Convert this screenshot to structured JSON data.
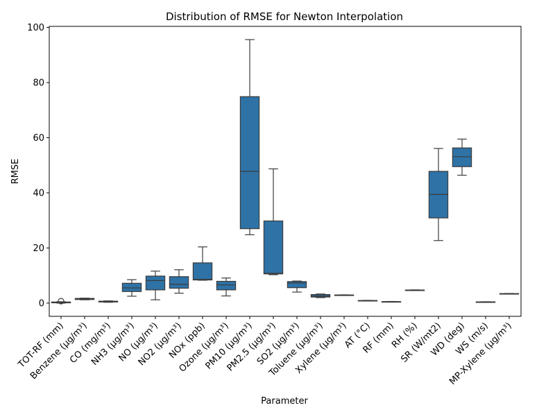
{
  "chart_data": {
    "type": "box",
    "title": "Distribution of RMSE for Newton Interpolation",
    "xlabel": "Parameter",
    "ylabel": "RMSE",
    "ylim": [
      -4.8,
      100.4
    ],
    "yticks": [
      0,
      20,
      40,
      60,
      80,
      100
    ],
    "grid": false,
    "box_color": "#2e72a6",
    "line_color": "#3b3b3b",
    "categories": [
      "TOT-RF (mm)",
      "Benzene (µg/m³)",
      "CO (mg/m³)",
      "NH3 (µg/m³)",
      "NO (µg/m³)",
      "NO2 (µg/m³)",
      "NOx (ppb)",
      "Ozone (µg/m³)",
      "PM10 (µg/m³)",
      "PM2.5 (µg/m³)",
      "SO2 (µg/m³)",
      "Toluene (µg/m³)",
      "Xylene (µg/m³)",
      "AT (°C)",
      "RF (mm)",
      "RH (%)",
      "SR (W/mt2)",
      "WD (deg)",
      "WS (m/s)",
      "MP-Xylene (µg/m³)"
    ],
    "boxes": [
      {
        "min": 0.0,
        "q1": 0.1,
        "median": 0.2,
        "q3": 0.4,
        "max": 0.5,
        "outliers": [
          0.7
        ]
      },
      {
        "min": 1.2,
        "q1": 1.3,
        "median": 1.5,
        "q3": 1.7,
        "max": 1.8,
        "outliers": []
      },
      {
        "min": 0.3,
        "q1": 0.4,
        "median": 0.5,
        "q3": 0.7,
        "max": 0.8,
        "outliers": []
      },
      {
        "min": 2.5,
        "q1": 4.2,
        "median": 5.5,
        "q3": 7.2,
        "max": 8.5,
        "outliers": []
      },
      {
        "min": 1.2,
        "q1": 4.8,
        "median": 8.2,
        "q3": 9.8,
        "max": 11.6,
        "outliers": []
      },
      {
        "min": 3.6,
        "q1": 5.4,
        "median": 6.8,
        "q3": 9.6,
        "max": 12.1,
        "outliers": []
      },
      {
        "min": 8.3,
        "q1": 8.4,
        "median": 8.6,
        "q3": 14.6,
        "max": 20.4,
        "outliers": []
      },
      {
        "min": 2.6,
        "q1": 4.8,
        "median": 6.6,
        "q3": 7.9,
        "max": 9.1,
        "outliers": []
      },
      {
        "min": 24.8,
        "q1": 27.0,
        "median": 47.8,
        "q3": 74.9,
        "max": 95.6,
        "outliers": []
      },
      {
        "min": 10.3,
        "q1": 10.6,
        "median": 10.8,
        "q3": 29.8,
        "max": 48.7,
        "outliers": []
      },
      {
        "min": 4.0,
        "q1": 5.6,
        "median": 7.3,
        "q3": 7.8,
        "max": 8.0,
        "outliers": []
      },
      {
        "min": 2.0,
        "q1": 2.2,
        "median": 2.6,
        "q3": 3.1,
        "max": 3.3,
        "outliers": []
      },
      {
        "min": 2.8,
        "q1": 2.85,
        "median": 2.9,
        "q3": 2.95,
        "max": 3.0,
        "outliers": []
      },
      {
        "min": 0.8,
        "q1": 0.85,
        "median": 0.9,
        "q3": 0.95,
        "max": 1.0,
        "outliers": []
      },
      {
        "min": 0.4,
        "q1": 0.45,
        "median": 0.5,
        "q3": 0.55,
        "max": 0.6,
        "outliers": []
      },
      {
        "min": 4.6,
        "q1": 4.65,
        "median": 4.7,
        "q3": 4.75,
        "max": 4.8,
        "outliers": []
      },
      {
        "min": 22.7,
        "q1": 30.9,
        "median": 39.4,
        "q3": 47.8,
        "max": 56.1,
        "outliers": []
      },
      {
        "min": 46.4,
        "q1": 49.5,
        "median": 53.1,
        "q3": 56.3,
        "max": 59.5,
        "outliers": []
      },
      {
        "min": 0.3,
        "q1": 0.35,
        "median": 0.4,
        "q3": 0.45,
        "max": 0.5,
        "outliers": []
      },
      {
        "min": 3.3,
        "q1": 3.35,
        "median": 3.4,
        "q3": 3.45,
        "max": 3.5,
        "outliers": []
      }
    ]
  }
}
